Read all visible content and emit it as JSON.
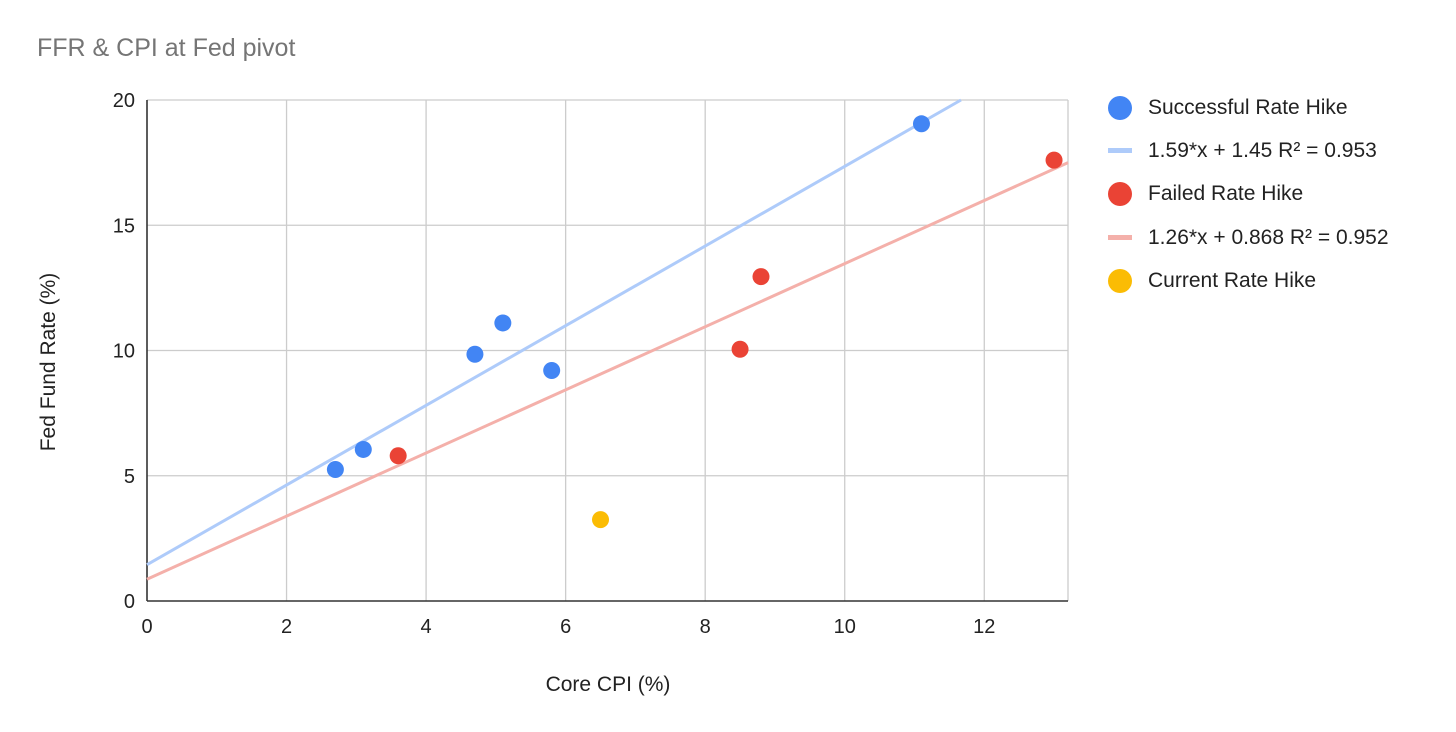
{
  "chart_data": {
    "type": "scatter",
    "title": "FFR & CPI at Fed pivot",
    "xlabel": "Core CPI (%)",
    "ylabel": "Fed Fund Rate (%)",
    "xlim": [
      0,
      13.2
    ],
    "ylim": [
      0,
      20
    ],
    "xticks": [
      0,
      2,
      4,
      6,
      8,
      10,
      12
    ],
    "yticks": [
      0,
      5,
      10,
      15,
      20
    ],
    "grid": true,
    "legend_position": "right",
    "series": [
      {
        "name": "Successful Rate Hike",
        "color": "#4285f4",
        "points": [
          [
            2.7,
            5.25
          ],
          [
            3.1,
            6.05
          ],
          [
            4.7,
            9.85
          ],
          [
            5.1,
            11.1
          ],
          [
            5.8,
            9.2
          ],
          [
            11.1,
            19.05
          ]
        ],
        "trendline": {
          "label": "1.59*x + 1.45 R² = 0.953",
          "slope": 1.59,
          "intercept": 1.45,
          "color": "#aecbfa"
        }
      },
      {
        "name": "Failed Rate Hike",
        "color": "#ea4335",
        "points": [
          [
            3.6,
            5.8
          ],
          [
            8.5,
            10.05
          ],
          [
            8.8,
            12.95
          ],
          [
            13.0,
            17.6
          ]
        ],
        "trendline": {
          "label": "1.26*x + 0.868 R² = 0.952",
          "slope": 1.26,
          "intercept": 0.868,
          "color": "#f4b0aa"
        }
      },
      {
        "name": "Current Rate Hike",
        "color": "#fbbc04",
        "points": [
          [
            6.5,
            3.25
          ]
        ]
      }
    ]
  }
}
